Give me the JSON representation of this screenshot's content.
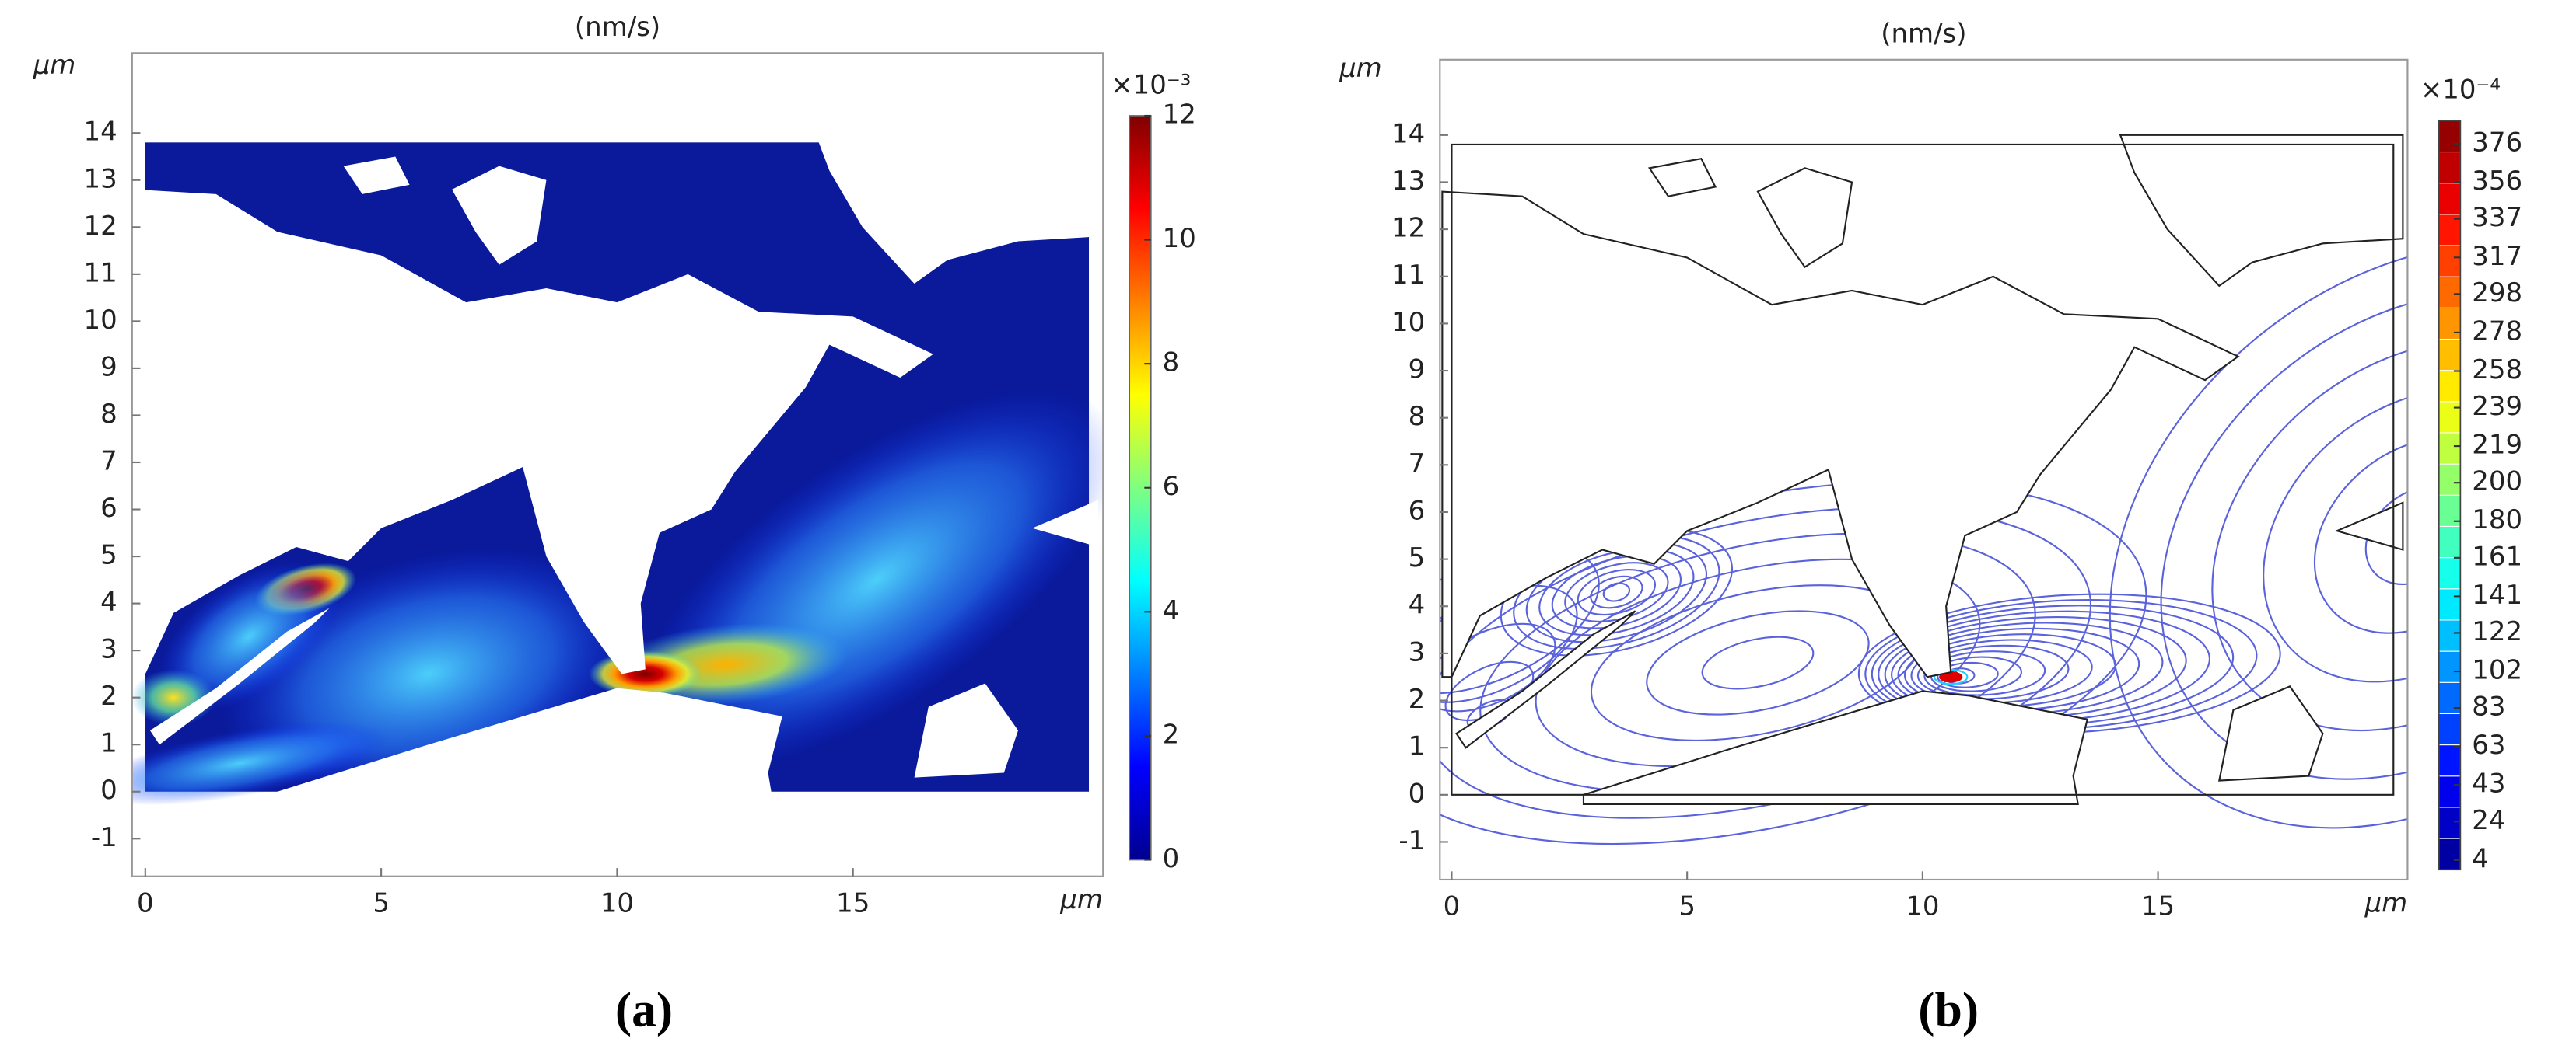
{
  "chart_data": [
    {
      "type": "heatmap",
      "panel_label": "(a)",
      "title": "(nm/s)",
      "x_label": "μm",
      "y_label": "μm",
      "xlim": [
        -0.28,
        20.3
      ],
      "xticks": [
        0,
        5,
        10,
        15
      ],
      "ylim": [
        -1.8,
        15.7
      ],
      "yticks": [
        -1,
        0,
        1,
        2,
        3,
        4,
        5,
        6,
        7,
        8,
        9,
        10,
        11,
        12,
        13,
        14
      ],
      "colorbar": {
        "label": "×10⁻³",
        "lim": [
          0,
          12
        ],
        "ticks": [
          0,
          2,
          4,
          6,
          8,
          10,
          12
        ]
      }
    },
    {
      "type": "contour",
      "panel_label": "(b)",
      "title": "(nm/s)",
      "x_label": "μm",
      "y_label": "μm",
      "xlim": [
        -0.25,
        20.3
      ],
      "xticks": [
        0,
        5,
        10,
        15
      ],
      "ylim": [
        -1.8,
        15.6
      ],
      "yticks": [
        -1,
        0,
        1,
        2,
        3,
        4,
        5,
        6,
        7,
        8,
        9,
        10,
        11,
        12,
        13,
        14
      ],
      "colorbar": {
        "label": "×10⁻⁴",
        "lim": [
          -1,
          388
        ],
        "ticks": [
          4,
          24,
          43,
          63,
          83,
          102,
          122,
          141,
          161,
          180,
          200,
          219,
          239,
          258,
          278,
          298,
          317,
          337,
          356,
          376
        ]
      }
    }
  ]
}
